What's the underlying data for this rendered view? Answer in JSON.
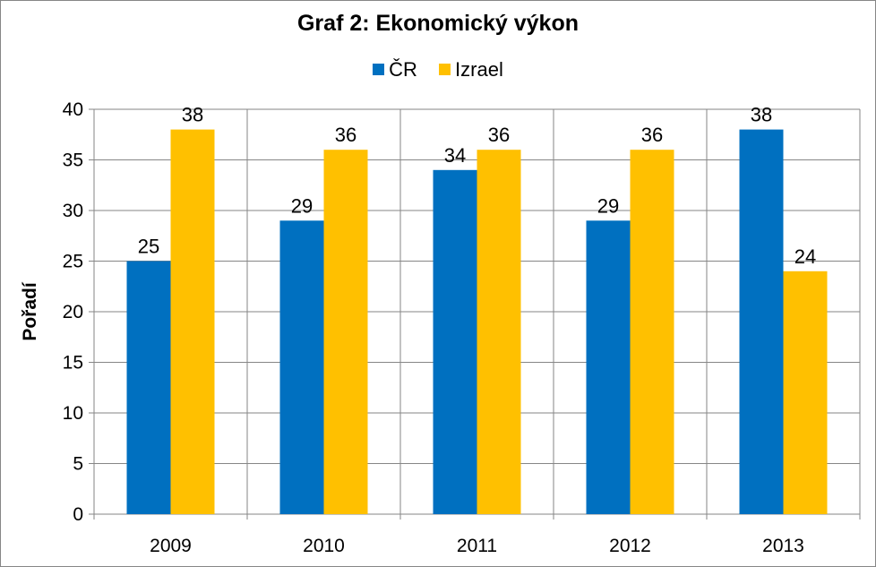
{
  "chart_data": {
    "type": "bar",
    "title": "Graf 2: Ekonomický výkon",
    "xlabel": "",
    "ylabel": "Pořadí",
    "categories": [
      "2009",
      "2010",
      "2011",
      "2012",
      "2013"
    ],
    "series": [
      {
        "name": "ČR",
        "values": [
          25,
          29,
          34,
          29,
          38
        ],
        "color": "#0070C0"
      },
      {
        "name": "Izrael",
        "values": [
          38,
          36,
          36,
          36,
          24
        ],
        "color": "#FFC000"
      }
    ],
    "ylim": [
      0,
      40
    ],
    "yticks": [
      "0",
      "5",
      "10",
      "15",
      "20",
      "25",
      "30",
      "35",
      "40"
    ],
    "grid": true,
    "legend_position": "top",
    "data_labels": true
  }
}
